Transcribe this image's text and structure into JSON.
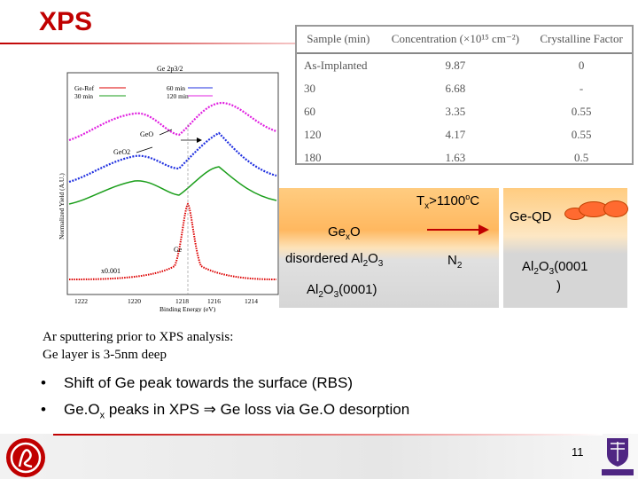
{
  "slide": {
    "title": "XPS",
    "page_number": "11"
  },
  "table": {
    "headers": [
      "Sample (min)",
      "Concentration (×10¹⁵ cm⁻²)",
      "Crystalline Factor"
    ],
    "rows": [
      [
        "As-Implanted",
        "9.87",
        "0"
      ],
      [
        "30",
        "6.68",
        "-"
      ],
      [
        "60",
        "3.35",
        "0.55"
      ],
      [
        "120",
        "4.17",
        "0.55"
      ],
      [
        "180",
        "1.63",
        "0.5"
      ]
    ]
  },
  "spectrum": {
    "top_label": "Ge 2p3/2",
    "legend": [
      "Ge-Ref",
      "30 min",
      "60 min",
      "120 min"
    ],
    "peak_labels": [
      "GeO",
      "GeO2",
      "Ge"
    ],
    "scale_label": "x0.001",
    "ylabel": "Normalized Yield (A.U.)",
    "xlabel": "Binding Energy (eV)",
    "x_ticks": [
      "1222",
      "1220",
      "1218",
      "1216",
      "1214"
    ]
  },
  "schematic": {
    "temp_label_prefix": "T",
    "temp_label_sub": "x",
    "temp_label_value": ">1100",
    "temp_label_sup": "o",
    "temp_label_unit": "C",
    "gex_prefix": "Ge",
    "gex_sub": "x",
    "gex_suffix": "O",
    "disordered_prefix": "disordered Al",
    "sub2": "2",
    "o_char": "O",
    "sub3": "3",
    "al_char": "Al",
    "substrate_suffix": "(0001)",
    "n_char": "N",
    "qd_label": "Ge-QD",
    "right_substrate_line1_suffix": "(0001",
    "right_substrate_line2": ")"
  },
  "note": {
    "line1": "Ar sputtering prior to XPS analysis:",
    "line2": "Ge layer is 3-5nm deep"
  },
  "bullets": {
    "b1": "Shift of Ge peak towards the surface (RBS)",
    "b2_a": "Ge.O",
    "b2_sub": "x",
    "b2_b": " peaks in XPS ",
    "b2_arrow": "⇒",
    "b2_c": " Ge loss via Ge.O desorption"
  },
  "colors": {
    "title": "#c00000",
    "arrow": "#c00000",
    "qd": "#ff6a30"
  }
}
